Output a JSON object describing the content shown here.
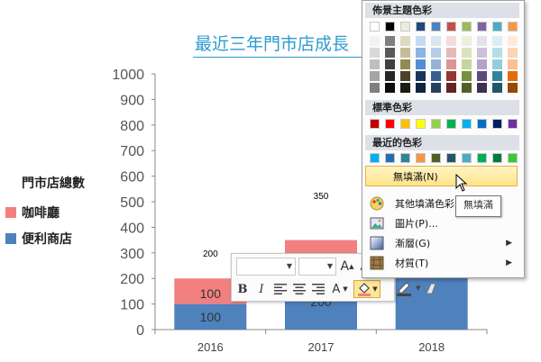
{
  "chart_data": {
    "type": "bar",
    "stacked": true,
    "title": "最近三年門市店成長",
    "categories": [
      "2016",
      "2017",
      "2018"
    ],
    "yticks": [
      "0",
      "100",
      "200",
      "300",
      "400",
      "500",
      "600",
      "700",
      "800",
      "900",
      "1000"
    ],
    "ylim": [
      0,
      1000
    ],
    "series": [
      {
        "name": "便利商店",
        "color": "#4f81bd",
        "values": [
          100,
          200,
          null
        ]
      },
      {
        "name": "咖啡廳",
        "color": "#f28080",
        "values": [
          100,
          150,
          null
        ]
      }
    ],
    "data_labels": {
      "inner": [
        "100",
        "100",
        "200"
      ],
      "totals": [
        "200",
        "350"
      ]
    },
    "legend": {
      "title": "門市店總數",
      "position": "left",
      "items": [
        "咖啡廳",
        "便利商店"
      ]
    }
  },
  "mini_toolbar": {
    "font_grow": "A",
    "font_shrink": "A",
    "bold": "B",
    "italic": "I",
    "font_color_letter": "A"
  },
  "color_menu": {
    "theme_header": "佈景主題色彩",
    "standard_header": "標準色彩",
    "recent_header": "最近的色彩",
    "theme_top": [
      "#ffffff",
      "#000000",
      "#eeece1",
      "#1f497d",
      "#4f81bd",
      "#c0504d",
      "#9bbb59",
      "#8064a2",
      "#4bacc6",
      "#f79646"
    ],
    "theme_grid": [
      [
        "#f2f2f2",
        "#7f7f7f",
        "#ddd9c3",
        "#c6d9f0",
        "#dbe5f1",
        "#f2dcdb",
        "#ebf1dd",
        "#e5e0ec",
        "#dbeef3",
        "#fdeada"
      ],
      [
        "#d8d8d8",
        "#595959",
        "#c4bd97",
        "#8db3e2",
        "#b8cce4",
        "#e5b9b7",
        "#d7e3bc",
        "#ccc1d9",
        "#b7dde8",
        "#fbd5b5"
      ],
      [
        "#bfbfbf",
        "#3f3f3f",
        "#938953",
        "#548dd4",
        "#95b3d7",
        "#d99694",
        "#c3d69b",
        "#b2a2c7",
        "#92cddc",
        "#fac08f"
      ],
      [
        "#a5a5a5",
        "#262626",
        "#494429",
        "#17365d",
        "#366092",
        "#953734",
        "#76923c",
        "#5f497a",
        "#31859b",
        "#e36c09"
      ],
      [
        "#7f7f7f",
        "#0c0c0c",
        "#1d1b10",
        "#0f243e",
        "#244061",
        "#632423",
        "#4f6128",
        "#3f3151",
        "#205867",
        "#974806"
      ]
    ],
    "standard": [
      "#c00000",
      "#ff0000",
      "#ffc000",
      "#ffff00",
      "#92d050",
      "#00b050",
      "#00b0f0",
      "#0070c0",
      "#002060",
      "#7030a0"
    ],
    "recent": [
      "#00b0f0",
      "#1f6fb5",
      "#31859b",
      "#f79646",
      "#4f6128",
      "#205867",
      "#4bacc6",
      "#00b050",
      "#007a3d",
      "#33cc33"
    ],
    "items": [
      {
        "label": "無填滿(N)",
        "icon": "no-fill"
      },
      {
        "label": "其他填滿色彩",
        "icon": "palette-icon"
      },
      {
        "label": "圖片(P)...",
        "icon": "picture-icon"
      },
      {
        "label": "漸層(G)",
        "icon": "gradient-icon"
      },
      {
        "label": "材質(T)",
        "icon": "texture-icon"
      }
    ]
  },
  "tooltip": "無填滿"
}
